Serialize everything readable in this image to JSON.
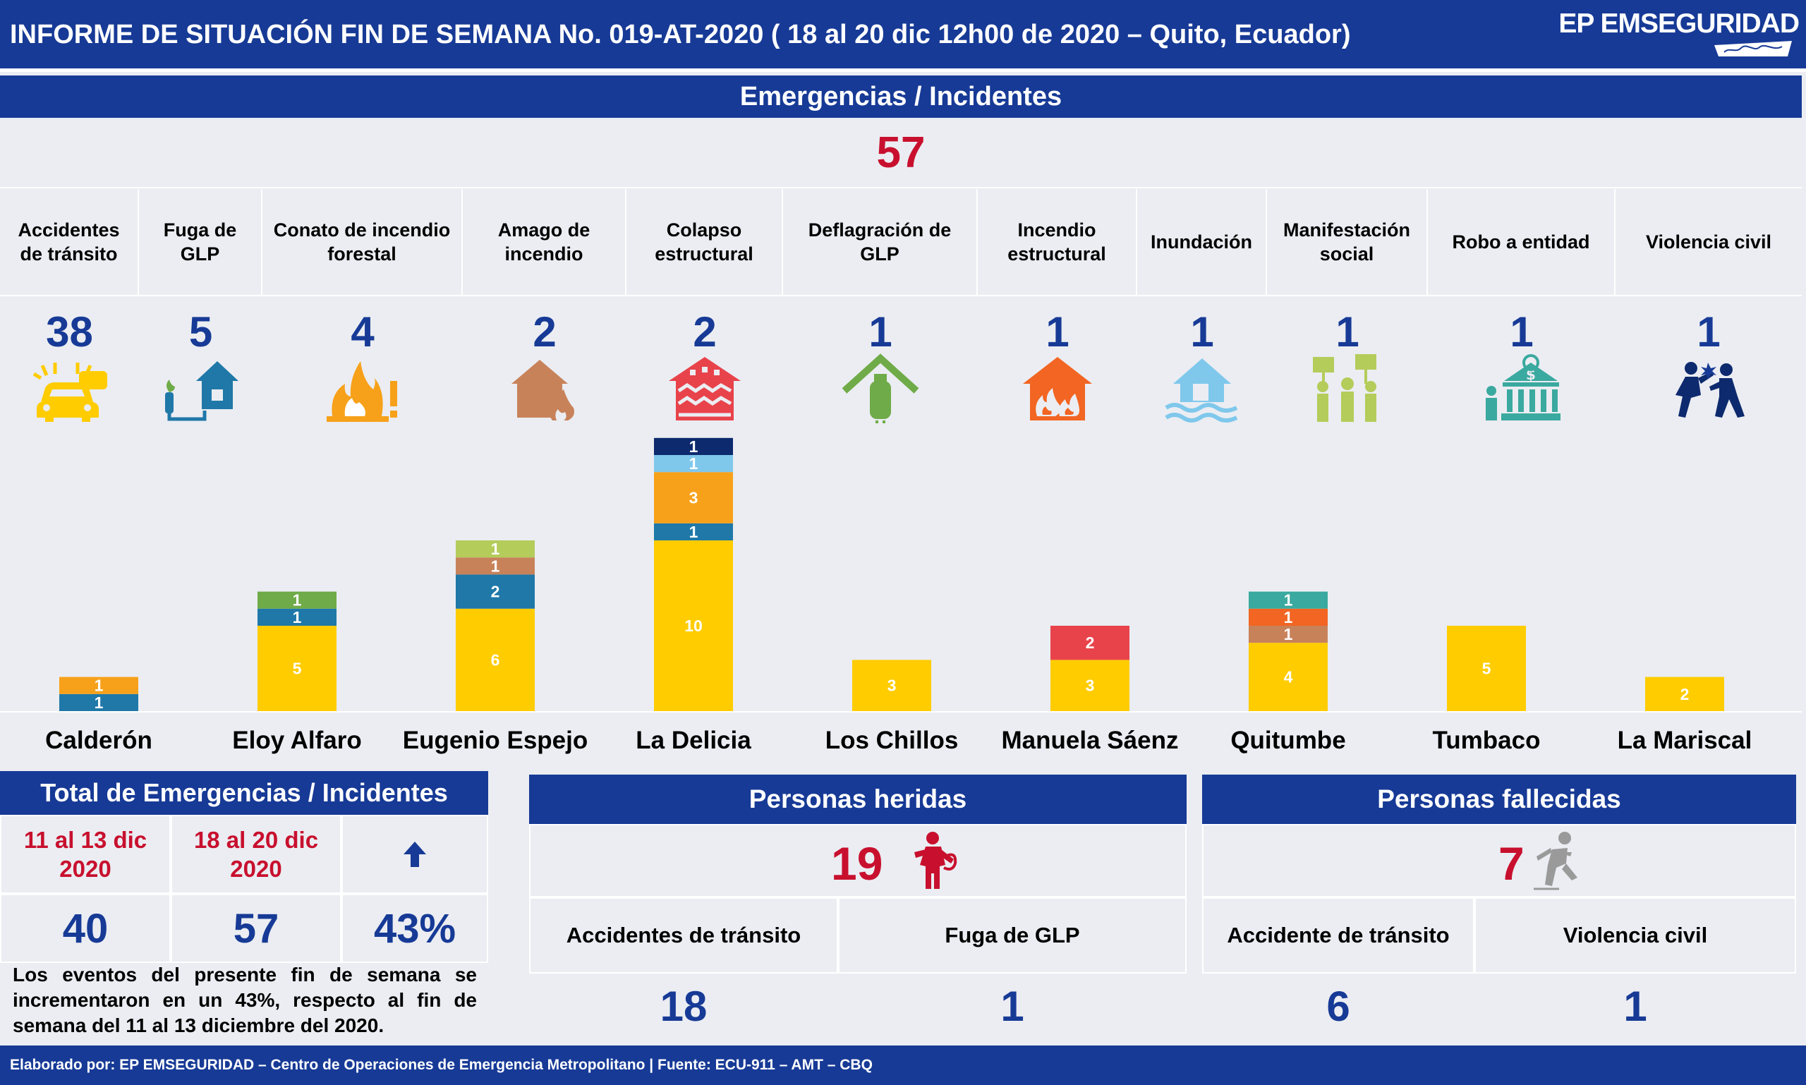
{
  "header": {
    "title": "INFORME DE SITUACIÓN FIN DE SEMANA No. 019-AT-2020 ( 18 al 20 dic 12h00 de 2020 – Quito, Ecuador)",
    "logo_text": "EP EMSEGURIDAD"
  },
  "emergencias": {
    "header": "Emergencias / Incidentes",
    "total": "57",
    "categories": [
      {
        "label": "Accidentes de tránsito",
        "count": "38",
        "icon": "car-crash-icon",
        "color": "#ffcc00"
      },
      {
        "label": "Fuga de GLP",
        "count": "5",
        "icon": "gas-leak-house-icon",
        "color": "#1f78a8"
      },
      {
        "label": "Conato de incendio forestal",
        "count": "4",
        "icon": "forest-fire-warning-icon",
        "color": "#f7a11a"
      },
      {
        "label": "Amago de incendio",
        "count": "2",
        "icon": "house-small-fire-icon",
        "color": "#c8825a"
      },
      {
        "label": "Colapso estructural",
        "count": "2",
        "icon": "collapsed-house-icon",
        "color": "#e8434b"
      },
      {
        "label": "Deflagración de GLP",
        "count": "1",
        "icon": "gas-cylinder-house-icon",
        "color": "#6fab48"
      },
      {
        "label": "Incendio estructural",
        "count": "1",
        "icon": "house-fire-icon",
        "color": "#f26522"
      },
      {
        "label": "Inundación",
        "count": "1",
        "icon": "flood-house-icon",
        "color": "#7fc8ec"
      },
      {
        "label": "Manifestación social",
        "count": "1",
        "icon": "protest-icon",
        "color": "#b4cc5a"
      },
      {
        "label": "Robo a entidad",
        "count": "1",
        "icon": "bank-robbery-icon",
        "color": "#3aa99f"
      },
      {
        "label": "Violencia civil",
        "count": "1",
        "icon": "civil-violence-icon",
        "color": "#0d2a6e"
      }
    ]
  },
  "chart_data": {
    "type": "bar",
    "stacked": true,
    "categories": [
      "Calderón",
      "Eloy Alfaro",
      "Eugenio Espejo",
      "La Delicia",
      "Los Chillos",
      "Manuela Sáenz",
      "Quitumbe",
      "Tumbaco",
      "La Mariscal"
    ],
    "series": [
      {
        "name": "Accidentes de tránsito",
        "color": "#ffcc00",
        "values": [
          0,
          5,
          6,
          10,
          3,
          3,
          4,
          5,
          2
        ]
      },
      {
        "name": "Fuga de GLP",
        "color": "#1f78a8",
        "values": [
          1,
          1,
          2,
          1,
          0,
          0,
          0,
          0,
          0
        ]
      },
      {
        "name": "Conato de incendio forestal",
        "color": "#f7a11a",
        "values": [
          1,
          0,
          0,
          3,
          0,
          0,
          0,
          0,
          0
        ]
      },
      {
        "name": "Amago de incendio",
        "color": "#c8825a",
        "values": [
          0,
          0,
          1,
          0,
          0,
          0,
          1,
          0,
          0
        ]
      },
      {
        "name": "Colapso estructural",
        "color": "#e8434b",
        "values": [
          0,
          0,
          0,
          0,
          0,
          2,
          0,
          0,
          0
        ]
      },
      {
        "name": "Deflagración de GLP",
        "color": "#6fab48",
        "values": [
          0,
          1,
          0,
          0,
          0,
          0,
          0,
          0,
          0
        ]
      },
      {
        "name": "Incendio estructural",
        "color": "#f26522",
        "values": [
          0,
          0,
          0,
          0,
          0,
          0,
          1,
          0,
          0
        ]
      },
      {
        "name": "Inundación",
        "color": "#7fc8ec",
        "values": [
          0,
          0,
          0,
          1,
          0,
          0,
          0,
          0,
          0
        ]
      },
      {
        "name": "Manifestación social",
        "color": "#b4cc5a",
        "values": [
          0,
          0,
          1,
          0,
          0,
          0,
          0,
          0,
          0
        ]
      },
      {
        "name": "Robo a entidad",
        "color": "#3aa99f",
        "values": [
          0,
          0,
          0,
          0,
          0,
          0,
          1,
          0,
          0
        ]
      },
      {
        "name": "Violencia civil",
        "color": "#0d2a6e",
        "values": [
          0,
          0,
          0,
          1,
          0,
          0,
          0,
          0,
          0
        ]
      }
    ],
    "ylim": [
      0,
      16
    ],
    "grid": false
  },
  "totales": {
    "header": "Total de Emergencias / Incidentes",
    "period_prev": "11 al 13 dic 2020",
    "period_curr": "18 al 20 dic 2020",
    "value_prev": "40",
    "value_curr": "57",
    "change": "43%",
    "trend_icon": "arrow-up-icon",
    "note": "Los eventos del presente fin de semana se incrementaron en un 43%, respecto al fin de semana del 11 al 13 diciembre del 2020."
  },
  "heridas": {
    "header": "Personas heridas",
    "total": "19",
    "icon": "injured-person-icon",
    "items": [
      {
        "label": "Accidentes de tránsito",
        "value": "18"
      },
      {
        "label": "Fuga de GLP",
        "value": "1"
      }
    ]
  },
  "fallecidas": {
    "header": "Personas fallecidas",
    "total": "7",
    "icon": "deceased-person-icon",
    "items": [
      {
        "label": "Accidente de tránsito",
        "value": "6"
      },
      {
        "label": "Violencia civil",
        "value": "1"
      }
    ]
  },
  "footer": {
    "text": "Elaborado por: EP EMSEGURIDAD – Centro de Operaciones de Emergencia Metropolitano | Fuente: ECU-911 – AMT – CBQ"
  }
}
